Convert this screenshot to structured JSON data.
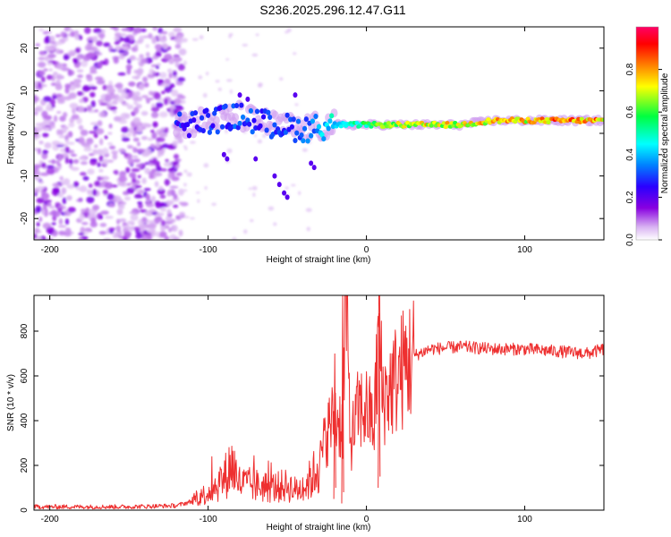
{
  "title": "S236.2025.296.12.47.G11",
  "chart_data": [
    {
      "type": "heatmap",
      "xlabel": "Height of straight line (km)",
      "ylabel": "Frequency (Hz)",
      "xlim": [
        -210,
        150
      ],
      "ylim": [
        -25,
        25
      ],
      "x_ticks": [
        -200,
        -100,
        0,
        100
      ],
      "y_ticks": [
        -20,
        -10,
        0,
        10,
        20
      ],
      "colorbar": {
        "label": "Normalized spectral amplitude",
        "range": [
          0,
          1
        ],
        "ticks": [
          "0.0",
          "0.2",
          "0.4",
          "0.6",
          "0.8"
        ],
        "colors": [
          "#ffffff",
          "#d9b3f2",
          "#8800e0",
          "#2a00ff",
          "#0080ff",
          "#00ffff",
          "#00ff40",
          "#ffff00",
          "#ff8000",
          "#ff0000",
          "#ff0066"
        ]
      },
      "ridge": {
        "description": "dominant frequency track",
        "x": [
          -120,
          -100,
          -80,
          -60,
          -40,
          -20,
          0,
          20,
          40,
          60,
          80,
          100,
          120,
          150
        ],
        "y": [
          2,
          3,
          4,
          2,
          1,
          2,
          2,
          2,
          2,
          2,
          3,
          3,
          3,
          3
        ],
        "amplitude": [
          0.3,
          0.3,
          0.35,
          0.3,
          0.35,
          0.5,
          0.6,
          0.75,
          0.8,
          0.75,
          0.85,
          0.8,
          0.9,
          0.85
        ]
      }
    },
    {
      "type": "line",
      "xlabel": "Height of straight line (km)",
      "ylabel": "SNR (10 * v/v)",
      "xlim": [
        -210,
        150
      ],
      "ylim": [
        0,
        960
      ],
      "x_ticks": [
        -200,
        -100,
        0,
        100
      ],
      "y_ticks": [
        0,
        200,
        400,
        600,
        800
      ],
      "series": [
        {
          "name": "SNR",
          "color": "#ee3030",
          "x": [
            -210,
            -180,
            -150,
            -120,
            -110,
            -100,
            -90,
            -85,
            -80,
            -70,
            -60,
            -50,
            -45,
            -40,
            -35,
            -30,
            -25,
            -20,
            -15,
            -13,
            -10,
            -5,
            0,
            5,
            8,
            10,
            15,
            20,
            25,
            30,
            40,
            60,
            80,
            100,
            120,
            140,
            150
          ],
          "y": [
            15,
            15,
            15,
            20,
            40,
            80,
            140,
            210,
            120,
            110,
            100,
            110,
            90,
            100,
            140,
            200,
            350,
            420,
            380,
            960,
            300,
            450,
            450,
            380,
            880,
            500,
            550,
            600,
            650,
            690,
            720,
            730,
            720,
            720,
            710,
            700,
            720
          ]
        }
      ]
    }
  ]
}
